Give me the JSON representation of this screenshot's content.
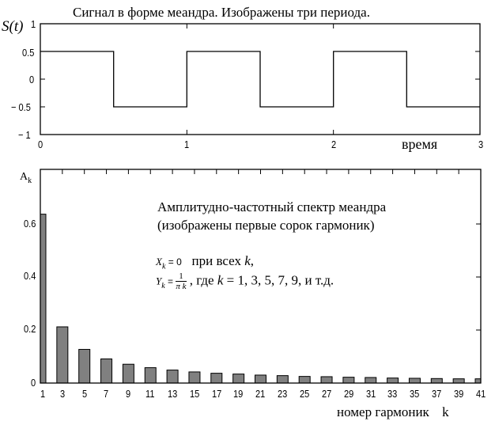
{
  "top_chart": {
    "title": "Сигнал в форме меандра. Изображены три периода.",
    "ylabel": "S(t)",
    "xlabel": "время",
    "yticks": [
      "1",
      "0.5",
      "0",
      "− 0.5",
      "− 1"
    ],
    "xticks": [
      "0",
      "1",
      "2",
      "3"
    ]
  },
  "bottom_chart": {
    "ylabel_main": "A",
    "ylabel_sub": "k",
    "yticks": [
      "0.6",
      "0.4",
      "0.2",
      "0"
    ],
    "xticks": [
      "1",
      "3",
      "5",
      "7",
      "9",
      "11",
      "13",
      "15",
      "17",
      "19",
      "21",
      "23",
      "25",
      "27",
      "29",
      "31",
      "33",
      "35",
      "37",
      "39",
      "41"
    ],
    "xlabel": "номер гармоник",
    "xlabel_var": "k",
    "annotation_line1": "Амплитудно-частотный спектр меандра",
    "annotation_line2": "(изображены первые сорок гармоник)",
    "formula1_lhs": "X",
    "formula1_sub": "k",
    "formula1_eq": " = 0",
    "formula1_text": "при всех ",
    "formula1_var": "k",
    "formula1_end": ",",
    "formula2_lhs": "Y",
    "formula2_sub": "k",
    "formula2_eq": " = ",
    "formula2_num": "1",
    "formula2_den": "π k",
    "formula2_text": " ,  где  ",
    "formula2_var": "k",
    "formula2_rest": " = 1, 3, 5, 7, 9, и т.д."
  },
  "colors": {
    "bar_fill": "#808080",
    "line": "#000000"
  },
  "chart_data": [
    {
      "type": "line",
      "title": "Сигнал в форме меандра. Изображены три периода.",
      "xlabel": "время",
      "ylabel": "S(t)",
      "xlim": [
        0,
        3
      ],
      "ylim": [
        -1,
        1
      ],
      "yticks": [
        -1,
        -0.5,
        0,
        0.5,
        1
      ],
      "xticks": [
        0,
        1,
        2,
        3
      ],
      "grid": false,
      "series": [
        {
          "name": "S(t)",
          "x": [
            0,
            0.5,
            0.5,
            1,
            1,
            1.5,
            1.5,
            2,
            2,
            2.5,
            2.5,
            3
          ],
          "y": [
            0.5,
            0.5,
            -0.5,
            -0.5,
            0.5,
            0.5,
            -0.5,
            -0.5,
            0.5,
            0.5,
            -0.5,
            -0.5
          ]
        }
      ]
    },
    {
      "type": "bar",
      "title": "Амплитудно-частотный спектр меандра (изображены первые сорок гармоник)",
      "xlabel": "номер гармоник k",
      "ylabel": "A_k",
      "ylim": [
        0,
        0.8
      ],
      "yticks": [
        0,
        0.2,
        0.4,
        0.6
      ],
      "grid": false,
      "categories": [
        1,
        3,
        5,
        7,
        9,
        11,
        13,
        15,
        17,
        19,
        21,
        23,
        25,
        27,
        29,
        31,
        33,
        35,
        37,
        39,
        41
      ],
      "values": [
        0.637,
        0.212,
        0.127,
        0.091,
        0.071,
        0.058,
        0.049,
        0.042,
        0.037,
        0.034,
        0.03,
        0.028,
        0.025,
        0.024,
        0.022,
        0.021,
        0.019,
        0.018,
        0.017,
        0.016,
        0.016
      ],
      "annotations": [
        "Амплитудно-частотный спектр меандра",
        "(изображены первые сорок гармоник)",
        "X_k = 0 при всех k,",
        "Y_k = 1/(πk), где k = 1, 3, 5, 7, 9, и т.д."
      ]
    }
  ]
}
